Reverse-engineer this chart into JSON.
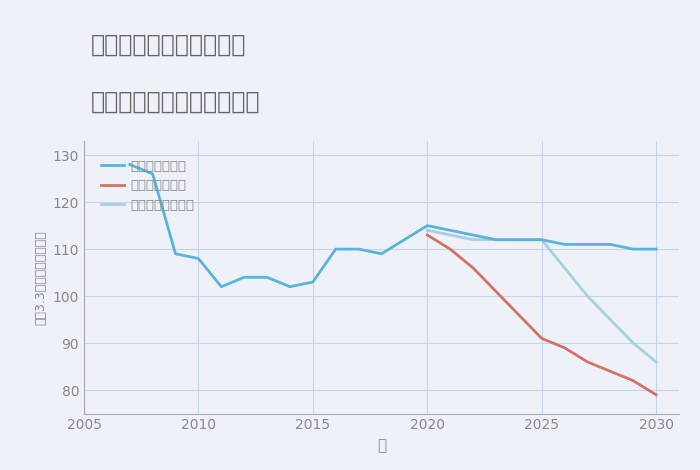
{
  "title_line1": "奈良県橿原市西新堂町の",
  "title_line2": "中古マンションの価格推移",
  "xlabel": "年",
  "ylabel": "平（3.3㎡）単価（万円）",
  "background_color": "#eef2f8",
  "plot_bg_color": "#eef2f8",
  "title_color": "#666666",
  "axis_color": "#aaaaaa",
  "tick_color": "#888888",
  "grid_color": "#c5d5e8",
  "ylim": [
    75,
    133
  ],
  "xlim": [
    2005,
    2031
  ],
  "yticks": [
    80,
    90,
    100,
    110,
    120,
    130
  ],
  "xticks": [
    2005,
    2010,
    2015,
    2020,
    2025,
    2030
  ],
  "good_scenario": {
    "label": "グッドシナリオ",
    "color": "#5ab4d9",
    "linewidth": 2.0,
    "x": [
      2007,
      2008,
      2009,
      2010,
      2011,
      2012,
      2013,
      2014,
      2015,
      2016,
      2017,
      2018,
      2019,
      2020,
      2021,
      2022,
      2023,
      2024,
      2025,
      2026,
      2027,
      2028,
      2029,
      2030
    ],
    "y": [
      128,
      126,
      109,
      108,
      102,
      104,
      104,
      102,
      103,
      110,
      110,
      109,
      112,
      115,
      114,
      113,
      112,
      112,
      112,
      111,
      111,
      111,
      110,
      110
    ]
  },
  "bad_scenario": {
    "label": "バッドシナリオ",
    "color": "#d4706a",
    "linewidth": 2.0,
    "x": [
      2020,
      2021,
      2022,
      2023,
      2024,
      2025,
      2026,
      2027,
      2028,
      2029,
      2030
    ],
    "y": [
      113,
      110,
      106,
      101,
      96,
      91,
      89,
      86,
      84,
      82,
      79
    ]
  },
  "normal_scenario": {
    "label": "ノーマルシナリオ",
    "color": "#a8cfe0",
    "linewidth": 2.0,
    "x": [
      2020,
      2021,
      2022,
      2023,
      2024,
      2025,
      2026,
      2027,
      2028,
      2029,
      2030
    ],
    "y": [
      114,
      113,
      112,
      112,
      112,
      112,
      106,
      100,
      95,
      90,
      86
    ]
  }
}
